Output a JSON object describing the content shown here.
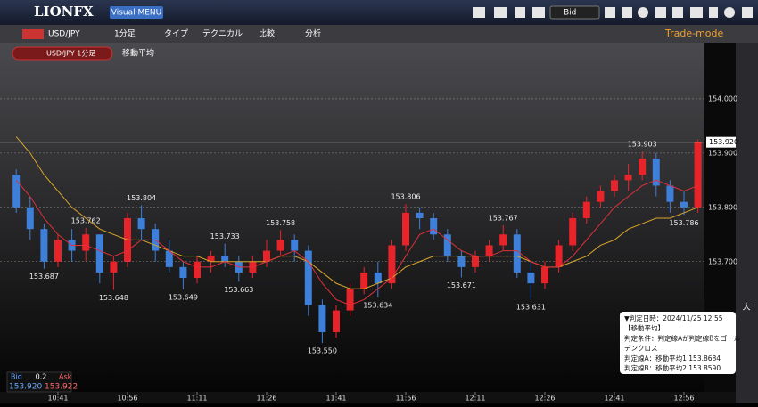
{
  "header": {
    "logo": "LIONFX",
    "menu": "Visual MENU",
    "price_type": "Bid"
  },
  "toolbar": {
    "symbol": "USD/JPY",
    "interval": "1分足",
    "tabs": [
      "タイプ",
      "テクニカル",
      "比較",
      "分析"
    ],
    "mode": "Trade-mode"
  },
  "legend": {
    "symbol": "USD/JPY 1分足",
    "indicator": "移動平均"
  },
  "tooltip": {
    "lines": [
      "▼判定日時：2024/11/25 12:55",
      "【移動平均】",
      "判定条件：判定線Aが判定線Bをゴール",
      "デンクロス",
      "判定線A：移動平均1 153.8684",
      "判定線B：移動平均2 153.8590"
    ]
  },
  "quote": {
    "bid_label": "Bid",
    "spread": "0.2",
    "ask_label": "Ask",
    "bid": "153.920",
    "ask": "153.922"
  },
  "side_label": "大",
  "chart_data": {
    "type": "candlestick",
    "categories": [
      null,
      null,
      null,
      "10:41",
      null,
      null,
      null,
      null,
      "10:56",
      null,
      null,
      null,
      null,
      "11:11",
      null,
      null,
      null,
      null,
      "11:26",
      null,
      null,
      null,
      null,
      "11:41",
      null,
      null,
      null,
      null,
      "11:56",
      null,
      null,
      null,
      null,
      "12:11",
      null,
      null,
      null,
      null,
      "12:26",
      null,
      null,
      null,
      null,
      "12:41",
      null,
      null,
      null,
      null,
      "12:56",
      null
    ],
    "candles": [
      [
        153.86,
        153.87,
        153.79,
        153.8
      ],
      [
        153.8,
        153.82,
        153.74,
        153.76
      ],
      [
        153.76,
        153.77,
        153.687,
        153.7
      ],
      [
        153.7,
        153.75,
        153.69,
        153.74
      ],
      [
        153.74,
        153.76,
        153.7,
        153.72
      ],
      [
        153.72,
        153.762,
        153.7,
        153.75
      ],
      [
        153.75,
        153.75,
        153.66,
        153.68
      ],
      [
        153.68,
        153.71,
        153.648,
        153.7
      ],
      [
        153.7,
        153.79,
        153.69,
        153.78
      ],
      [
        153.78,
        153.804,
        153.74,
        153.76
      ],
      [
        153.76,
        153.77,
        153.7,
        153.72
      ],
      [
        153.72,
        153.74,
        153.68,
        153.69
      ],
      [
        153.69,
        153.7,
        153.649,
        153.67
      ],
      [
        153.67,
        153.71,
        153.66,
        153.7
      ],
      [
        153.7,
        153.72,
        153.68,
        153.71
      ],
      [
        153.71,
        153.733,
        153.69,
        153.7
      ],
      [
        153.7,
        153.71,
        153.663,
        153.68
      ],
      [
        153.68,
        153.71,
        153.67,
        153.7
      ],
      [
        153.7,
        153.74,
        153.69,
        153.72
      ],
      [
        153.72,
        153.758,
        153.71,
        153.74
      ],
      [
        153.74,
        153.75,
        153.7,
        153.72
      ],
      [
        153.72,
        153.73,
        153.6,
        153.62
      ],
      [
        153.62,
        153.63,
        153.55,
        153.57
      ],
      [
        153.57,
        153.62,
        153.56,
        153.61
      ],
      [
        153.61,
        153.66,
        153.6,
        153.65
      ],
      [
        153.65,
        153.69,
        153.64,
        153.68
      ],
      [
        153.68,
        153.7,
        153.634,
        153.66
      ],
      [
        153.66,
        153.74,
        153.65,
        153.73
      ],
      [
        153.73,
        153.806,
        153.72,
        153.79
      ],
      [
        153.79,
        153.8,
        153.76,
        153.78
      ],
      [
        153.78,
        153.79,
        153.74,
        153.75
      ],
      [
        153.75,
        153.76,
        153.7,
        153.71
      ],
      [
        153.71,
        153.72,
        153.671,
        153.69
      ],
      [
        153.69,
        153.72,
        153.68,
        153.71
      ],
      [
        153.71,
        153.74,
        153.7,
        153.73
      ],
      [
        153.73,
        153.767,
        153.72,
        153.75
      ],
      [
        153.75,
        153.76,
        153.67,
        153.68
      ],
      [
        153.68,
        153.7,
        153.631,
        153.66
      ],
      [
        153.66,
        153.7,
        153.65,
        153.69
      ],
      [
        153.69,
        153.74,
        153.68,
        153.73
      ],
      [
        153.73,
        153.79,
        153.72,
        153.78
      ],
      [
        153.78,
        153.82,
        153.77,
        153.81
      ],
      [
        153.81,
        153.84,
        153.8,
        153.83
      ],
      [
        153.83,
        153.86,
        153.82,
        153.85
      ],
      [
        153.85,
        153.88,
        153.83,
        153.86
      ],
      [
        153.86,
        153.903,
        153.85,
        153.89
      ],
      [
        153.89,
        153.9,
        153.82,
        153.84
      ],
      [
        153.84,
        153.85,
        153.79,
        153.81
      ],
      [
        153.81,
        153.83,
        153.786,
        153.8
      ],
      [
        153.8,
        153.925,
        153.79,
        153.92
      ]
    ],
    "high_labels": [
      null,
      null,
      null,
      null,
      null,
      "153.762",
      null,
      null,
      null,
      "153.804",
      null,
      null,
      null,
      null,
      null,
      "153.733",
      null,
      null,
      null,
      "153.758",
      null,
      null,
      null,
      null,
      null,
      null,
      null,
      null,
      "153.806",
      null,
      null,
      null,
      null,
      null,
      null,
      "153.767",
      null,
      null,
      null,
      null,
      null,
      null,
      null,
      null,
      null,
      "153.903",
      null,
      null,
      null,
      null
    ],
    "low_labels": [
      null,
      null,
      "153.687",
      null,
      null,
      null,
      null,
      "153.648",
      null,
      null,
      null,
      null,
      "153.649",
      null,
      null,
      null,
      "153.663",
      null,
      null,
      null,
      null,
      null,
      "153.550",
      null,
      null,
      null,
      "153.634",
      null,
      null,
      null,
      null,
      null,
      "153.671",
      null,
      null,
      null,
      null,
      "153.631",
      null,
      null,
      null,
      null,
      null,
      null,
      null,
      null,
      null,
      null,
      "153.786",
      null
    ],
    "up_color": "#e8242b",
    "down_color": "#3d7fd9",
    "series": [
      {
        "color": "#d9a62a",
        "values": [
          153.93,
          153.9,
          153.86,
          153.83,
          153.8,
          153.78,
          153.76,
          153.75,
          153.74,
          153.74,
          153.73,
          153.72,
          153.71,
          153.71,
          153.7,
          153.7,
          153.7,
          153.7,
          153.7,
          153.71,
          153.71,
          153.7,
          153.68,
          153.66,
          153.65,
          153.65,
          153.66,
          153.67,
          153.69,
          153.7,
          153.71,
          153.71,
          153.71,
          153.71,
          153.71,
          153.71,
          153.71,
          153.7,
          153.69,
          153.69,
          153.7,
          153.71,
          153.73,
          153.74,
          153.76,
          153.77,
          153.78,
          153.78,
          153.79,
          153.8
        ]
      },
      {
        "color": "#e0303a",
        "values": [
          153.85,
          153.82,
          153.78,
          153.75,
          153.73,
          153.73,
          153.72,
          153.71,
          153.72,
          153.74,
          153.74,
          153.72,
          153.7,
          153.69,
          153.69,
          153.7,
          153.69,
          153.69,
          153.7,
          153.71,
          153.72,
          153.7,
          153.66,
          153.63,
          153.62,
          153.63,
          153.65,
          153.67,
          153.71,
          153.75,
          153.76,
          153.74,
          153.72,
          153.71,
          153.71,
          153.72,
          153.72,
          153.7,
          153.69,
          153.69,
          153.71,
          153.74,
          153.77,
          153.8,
          153.82,
          153.84,
          153.85,
          153.84,
          153.83,
          153.84
        ]
      }
    ],
    "ylim": [
      153.46,
      154.1
    ],
    "yticks": [
      {
        "value": 153.7,
        "label": "153.700"
      },
      {
        "value": 153.8,
        "label": "153.800"
      },
      {
        "value": 153.9,
        "label": "153.900"
      },
      {
        "value": 154,
        "label": "154.000"
      }
    ],
    "current_price": {
      "value": 153.92,
      "label": "153.920"
    },
    "grid": true
  }
}
